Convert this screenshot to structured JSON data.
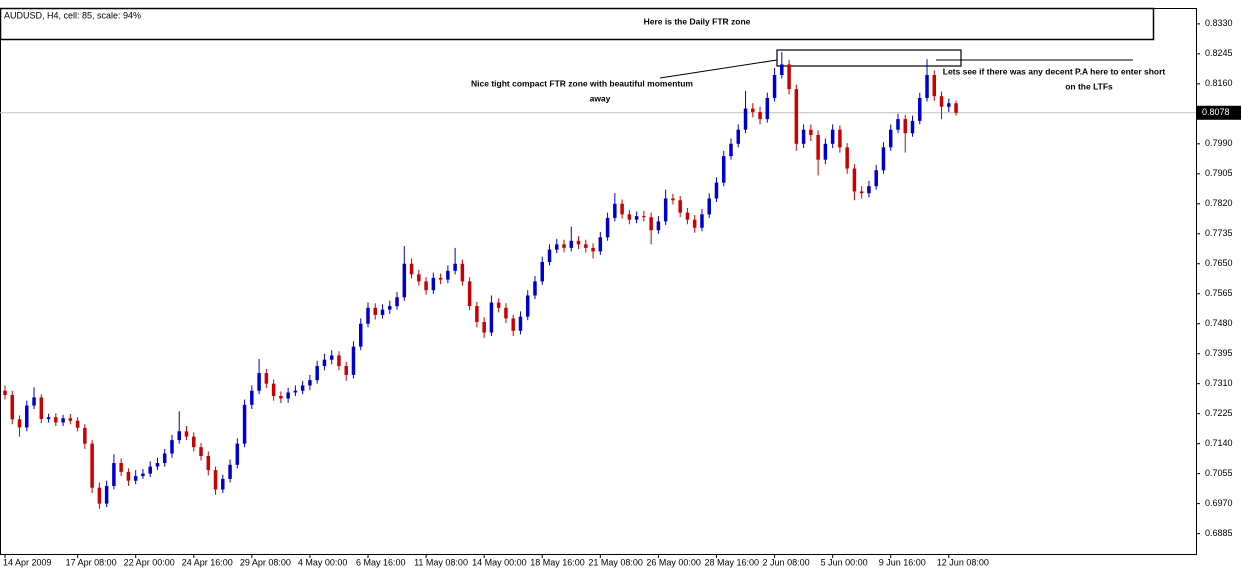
{
  "chart_data": {
    "type": "candlestick",
    "title": "AUDUSD, H4, cell: 85, scale: 94%",
    "categories": [
      "14 Apr 2009",
      null,
      null,
      null,
      null,
      null,
      null,
      null,
      null,
      null,
      "17 Apr 08:00",
      null,
      null,
      null,
      null,
      null,
      null,
      null,
      "22 Apr 00:00",
      null,
      null,
      null,
      null,
      null,
      null,
      null,
      "24 Apr 16:00",
      null,
      null,
      null,
      null,
      null,
      null,
      null,
      "29 Apr 08:00",
      null,
      null,
      null,
      null,
      null,
      null,
      null,
      "4 May 00:00",
      null,
      null,
      null,
      null,
      null,
      null,
      null,
      "6 May 16:00",
      null,
      null,
      null,
      null,
      null,
      null,
      null,
      "11 May 08:00",
      null,
      null,
      null,
      null,
      null,
      null,
      null,
      "14 May 00:00",
      null,
      null,
      null,
      null,
      null,
      null,
      null,
      "18 May 16:00",
      null,
      null,
      null,
      null,
      null,
      null,
      null,
      "21 May 08:00",
      null,
      null,
      null,
      null,
      null,
      null,
      null,
      "26 May 00:00",
      null,
      null,
      null,
      null,
      null,
      null,
      null,
      "28 May 16:00",
      null,
      null,
      null,
      null,
      null,
      null,
      null,
      "2 Jun 08:00",
      null,
      null,
      null,
      null,
      null,
      null,
      null,
      "5 Jun 00:00",
      null,
      null,
      null,
      null,
      null,
      null,
      null,
      "9 Jun 16:00",
      null,
      null,
      null,
      null,
      null,
      null,
      null,
      "12 Jun 08:00",
      null
    ],
    "open": [
      0.729,
      0.7278,
      0.7209,
      0.7186,
      0.7248,
      0.7271,
      0.721,
      0.7215,
      0.72,
      0.7212,
      0.7205,
      0.7185,
      0.714,
      0.7015,
      0.697,
      0.702,
      0.7085,
      0.706,
      0.7035,
      0.7048,
      0.7055,
      0.7075,
      0.7085,
      0.7112,
      0.715,
      0.7175,
      0.716,
      0.713,
      0.7105,
      0.7065,
      0.701,
      0.704,
      0.708,
      0.714,
      0.725,
      0.729,
      0.734,
      0.731,
      0.7275,
      0.7268,
      0.7285,
      0.729,
      0.7305,
      0.732,
      0.736,
      0.7378,
      0.739,
      0.736,
      0.7335,
      0.7415,
      0.748,
      0.7525,
      0.7505,
      0.752,
      0.753,
      0.7555,
      0.765,
      0.762,
      0.76,
      0.7575,
      0.761,
      0.7605,
      0.763,
      0.765,
      0.76,
      0.753,
      0.7485,
      0.7455,
      0.754,
      0.7525,
      0.7495,
      0.746,
      0.75,
      0.756,
      0.76,
      0.7655,
      0.769,
      0.7705,
      0.7695,
      0.7715,
      0.7705,
      0.7695,
      0.7685,
      0.7725,
      0.778,
      0.782,
      0.779,
      0.7775,
      0.7785,
      0.7782,
      0.7745,
      0.777,
      0.7835,
      0.783,
      0.7795,
      0.7775,
      0.7752,
      0.779,
      0.7835,
      0.788,
      0.7955,
      0.799,
      0.803,
      0.809,
      0.808,
      0.806,
      0.812,
      0.8185,
      0.8215,
      0.8145,
      0.799,
      0.803,
      0.8015,
      0.7945,
      0.799,
      0.803,
      0.798,
      0.792,
      0.7855,
      0.785,
      0.787,
      0.7915,
      0.798,
      0.803,
      0.806,
      0.802,
      0.8055,
      0.812,
      0.8185,
      0.8125,
      0.8095,
      0.8105
    ],
    "high": [
      0.7305,
      0.729,
      0.722,
      0.7262,
      0.73,
      0.728,
      0.7225,
      0.7226,
      0.7222,
      0.7224,
      0.7215,
      0.7195,
      0.715,
      0.703,
      0.7035,
      0.711,
      0.7098,
      0.707,
      0.7065,
      0.7068,
      0.709,
      0.71,
      0.7125,
      0.7165,
      0.7232,
      0.719,
      0.7172,
      0.7142,
      0.7118,
      0.7075,
      0.7052,
      0.7095,
      0.7155,
      0.7265,
      0.7305,
      0.738,
      0.7352,
      0.7322,
      0.7288,
      0.7298,
      0.7305,
      0.7318,
      0.7335,
      0.7375,
      0.7395,
      0.7405,
      0.7402,
      0.7372,
      0.743,
      0.7495,
      0.754,
      0.7538,
      0.7535,
      0.7545,
      0.757,
      0.77,
      0.7665,
      0.7632,
      0.7612,
      0.7625,
      0.7622,
      0.7645,
      0.7695,
      0.7662,
      0.7612,
      0.7542,
      0.7498,
      0.756,
      0.7552,
      0.7538,
      0.7505,
      0.7515,
      0.7575,
      0.7615,
      0.767,
      0.7705,
      0.772,
      0.7718,
      0.7755,
      0.7728,
      0.7718,
      0.7708,
      0.774,
      0.7795,
      0.785,
      0.7832,
      0.7802,
      0.7798,
      0.78,
      0.7795,
      0.7785,
      0.786,
      0.7848,
      0.7842,
      0.7808,
      0.7788,
      0.7805,
      0.785,
      0.7895,
      0.797,
      0.8005,
      0.8045,
      0.814,
      0.8105,
      0.8095,
      0.8135,
      0.8205,
      0.825,
      0.8228,
      0.8158,
      0.8045,
      0.8045,
      0.8028,
      0.8005,
      0.8045,
      0.8042,
      0.7992,
      0.7932,
      0.787,
      0.7885,
      0.793,
      0.7995,
      0.8045,
      0.8075,
      0.8072,
      0.807,
      0.8135,
      0.823,
      0.8198,
      0.8138,
      0.8118,
      0.8112
    ],
    "low": [
      0.7265,
      0.7195,
      0.716,
      0.7175,
      0.7238,
      0.7198,
      0.72,
      0.719,
      0.719,
      0.7195,
      0.7175,
      0.7125,
      0.7,
      0.6955,
      0.696,
      0.701,
      0.7048,
      0.702,
      0.7025,
      0.704,
      0.7045,
      0.7065,
      0.7075,
      0.71,
      0.714,
      0.715,
      0.7118,
      0.7092,
      0.705,
      0.6995,
      0.7,
      0.703,
      0.707,
      0.713,
      0.7238,
      0.728,
      0.7298,
      0.7262,
      0.7255,
      0.7256,
      0.7275,
      0.728,
      0.7292,
      0.731,
      0.7348,
      0.7365,
      0.7348,
      0.7318,
      0.7325,
      0.7405,
      0.747,
      0.7492,
      0.7495,
      0.7508,
      0.752,
      0.7545,
      0.7608,
      0.7588,
      0.7562,
      0.7565,
      0.7592,
      0.7595,
      0.762,
      0.7588,
      0.7518,
      0.747,
      0.744,
      0.7445,
      0.7512,
      0.7482,
      0.7445,
      0.745,
      0.749,
      0.755,
      0.759,
      0.7645,
      0.768,
      0.7682,
      0.7685,
      0.7692,
      0.7682,
      0.7665,
      0.7675,
      0.7715,
      0.777,
      0.7778,
      0.7762,
      0.7765,
      0.777,
      0.7705,
      0.7735,
      0.776,
      0.7818,
      0.7782,
      0.7762,
      0.7738,
      0.7742,
      0.778,
      0.7825,
      0.787,
      0.7945,
      0.798,
      0.802,
      0.8065,
      0.8045,
      0.805,
      0.811,
      0.8175,
      0.813,
      0.797,
      0.7978,
      0.7998,
      0.79,
      0.7932,
      0.7978,
      0.7965,
      0.7905,
      0.783,
      0.7835,
      0.7838,
      0.786,
      0.7905,
      0.797,
      0.802,
      0.7965,
      0.801,
      0.8045,
      0.811,
      0.8112,
      0.806,
      0.808,
      0.807
    ],
    "close": [
      0.7278,
      0.7209,
      0.7186,
      0.7248,
      0.7271,
      0.721,
      0.7215,
      0.72,
      0.7212,
      0.7205,
      0.7185,
      0.714,
      0.7015,
      0.697,
      0.702,
      0.7085,
      0.706,
      0.7035,
      0.7048,
      0.7055,
      0.7075,
      0.7085,
      0.7112,
      0.715,
      0.7175,
      0.716,
      0.713,
      0.7105,
      0.7065,
      0.701,
      0.704,
      0.708,
      0.714,
      0.725,
      0.729,
      0.734,
      0.731,
      0.7275,
      0.7268,
      0.7285,
      0.729,
      0.7305,
      0.732,
      0.736,
      0.7378,
      0.739,
      0.736,
      0.7335,
      0.7415,
      0.748,
      0.7525,
      0.7505,
      0.752,
      0.753,
      0.7555,
      0.765,
      0.762,
      0.76,
      0.7575,
      0.761,
      0.7605,
      0.763,
      0.765,
      0.76,
      0.753,
      0.7485,
      0.7455,
      0.754,
      0.7525,
      0.7495,
      0.746,
      0.75,
      0.756,
      0.76,
      0.7655,
      0.769,
      0.7705,
      0.7695,
      0.7715,
      0.7705,
      0.7695,
      0.7685,
      0.7725,
      0.778,
      0.782,
      0.779,
      0.7775,
      0.7785,
      0.7782,
      0.7745,
      0.777,
      0.7835,
      0.783,
      0.7795,
      0.7775,
      0.7752,
      0.779,
      0.7835,
      0.788,
      0.7955,
      0.799,
      0.803,
      0.809,
      0.808,
      0.806,
      0.812,
      0.8185,
      0.8215,
      0.8145,
      0.799,
      0.803,
      0.8015,
      0.7945,
      0.799,
      0.803,
      0.798,
      0.792,
      0.7855,
      0.785,
      0.787,
      0.7915,
      0.798,
      0.803,
      0.806,
      0.802,
      0.8055,
      0.812,
      0.8185,
      0.8125,
      0.8095,
      0.8105,
      0.8078
    ],
    "up_color": "#0000cc",
    "down_color": "#cc0000",
    "ylim": [
      0.683,
      0.8375
    ],
    "yticks": [
      {
        "value": 0.833,
        "label": "0.8330"
      },
      0.8245,
      {
        "value": 0.816,
        "label": "0.8160"
      },
      {
        "value": 0.799,
        "label": "0.7990"
      },
      0.7905,
      {
        "value": 0.782,
        "label": "0.7820"
      },
      0.7735,
      {
        "value": 0.765,
        "label": "0.7650"
      },
      0.7565,
      {
        "value": 0.748,
        "label": "0.7480"
      },
      0.7395,
      {
        "value": 0.731,
        "label": "0.7310"
      },
      0.7225,
      {
        "value": 0.714,
        "label": "0.7140"
      },
      0.7055,
      {
        "value": 0.697,
        "label": "0.6970"
      },
      0.6885
    ],
    "last_price": {
      "value": 0.8078,
      "label": "0.8078"
    },
    "annotations": {
      "daily_zone": "Here is the Daily FTR zone",
      "ftr_note": [
        "Nice tight compact FTR zone with beautiful momentum",
        "away"
      ],
      "pa_note": [
        "Lets see if there was any decent P.A here to enter short",
        "on the LTFs"
      ]
    }
  }
}
